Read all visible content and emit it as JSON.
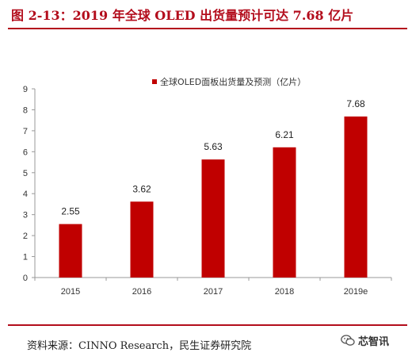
{
  "header": {
    "title": "图 2-13：2019 年全球 OLED 出货量预计可达 7.68 亿片"
  },
  "footer": {
    "source": "资料来源：CINNO Research，民生证券研究院",
    "watermark_text": "芯智讯",
    "watermark_icon": "wechat-icon"
  },
  "colors": {
    "bar": "#c00000",
    "accent": "#b30d1c"
  },
  "chart_data": {
    "type": "bar",
    "title": "",
    "xlabel": "",
    "ylabel": "",
    "categories": [
      "2015",
      "2016",
      "2017",
      "2018",
      "2019e"
    ],
    "series": [
      {
        "name": "全球OLED面板出货量及预测（亿片）",
        "values": [
          2.55,
          3.62,
          5.63,
          6.21,
          7.68
        ]
      }
    ],
    "data_labels": [
      "2.55",
      "3.62",
      "5.63",
      "6.21",
      "7.68"
    ],
    "ylim": [
      0,
      9
    ],
    "yticks": [
      0,
      1,
      2,
      3,
      4,
      5,
      6,
      7,
      8,
      9
    ],
    "grid": false,
    "legend": "top"
  }
}
